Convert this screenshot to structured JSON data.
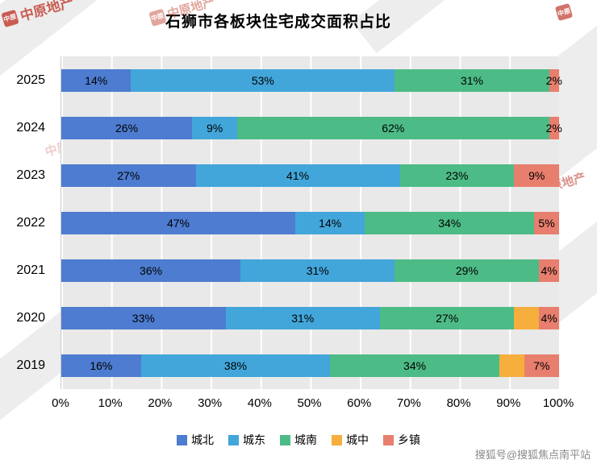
{
  "page": {
    "title": "石狮市各板块住宅成交面积占比",
    "credit": "搜狐号@搜狐焦点南平站"
  },
  "watermark": {
    "brand": "中原地产",
    "logo_text": "中原"
  },
  "chart_data": {
    "type": "bar",
    "variant": "horizontal-stacked-100-percent",
    "title": "石狮市各板块住宅成交面积占比",
    "categories": [
      "2025",
      "2024",
      "2023",
      "2022",
      "2021",
      "2020",
      "2019"
    ],
    "series": [
      {
        "name": "城北",
        "color": "#4d7cd0",
        "values": [
          14,
          26,
          27,
          47,
          36,
          33,
          16
        ]
      },
      {
        "name": "城东",
        "color": "#42a6da",
        "values": [
          53,
          9,
          41,
          14,
          31,
          31,
          38
        ]
      },
      {
        "name": "城南",
        "color": "#4dbb86",
        "values": [
          31,
          62,
          23,
          34,
          29,
          27,
          34
        ]
      },
      {
        "name": "城中",
        "color": "#f6ae3d",
        "values": [
          0,
          0,
          0,
          0,
          0,
          5,
          5
        ]
      },
      {
        "name": "乡镇",
        "color": "#e87e6d",
        "values": [
          2,
          2,
          9,
          5,
          4,
          4,
          7
        ]
      }
    ],
    "labels": [
      [
        "14%",
        "53%",
        "31%",
        "",
        "2%"
      ],
      [
        "26%",
        "9%",
        "62%",
        "",
        "2%"
      ],
      [
        "27%",
        "41%",
        "23%",
        "",
        "9%"
      ],
      [
        "47%",
        "14%",
        "34%",
        "",
        "5%"
      ],
      [
        "36%",
        "31%",
        "29%",
        "",
        "4%"
      ],
      [
        "33%",
        "31%",
        "27%",
        "",
        "4%"
      ],
      [
        "16%",
        "38%",
        "34%",
        "",
        "7%"
      ]
    ],
    "x_ticks": [
      "0%",
      "10%",
      "20%",
      "30%",
      "40%",
      "50%",
      "60%",
      "70%",
      "80%",
      "90%",
      "100%"
    ],
    "xlim": [
      0,
      100
    ],
    "grid": "vertical-white-lines",
    "plot_background": "#e9e9e9",
    "legend": [
      "城北",
      "城东",
      "城南",
      "城中",
      "乡镇"
    ],
    "legend_position": "bottom"
  }
}
